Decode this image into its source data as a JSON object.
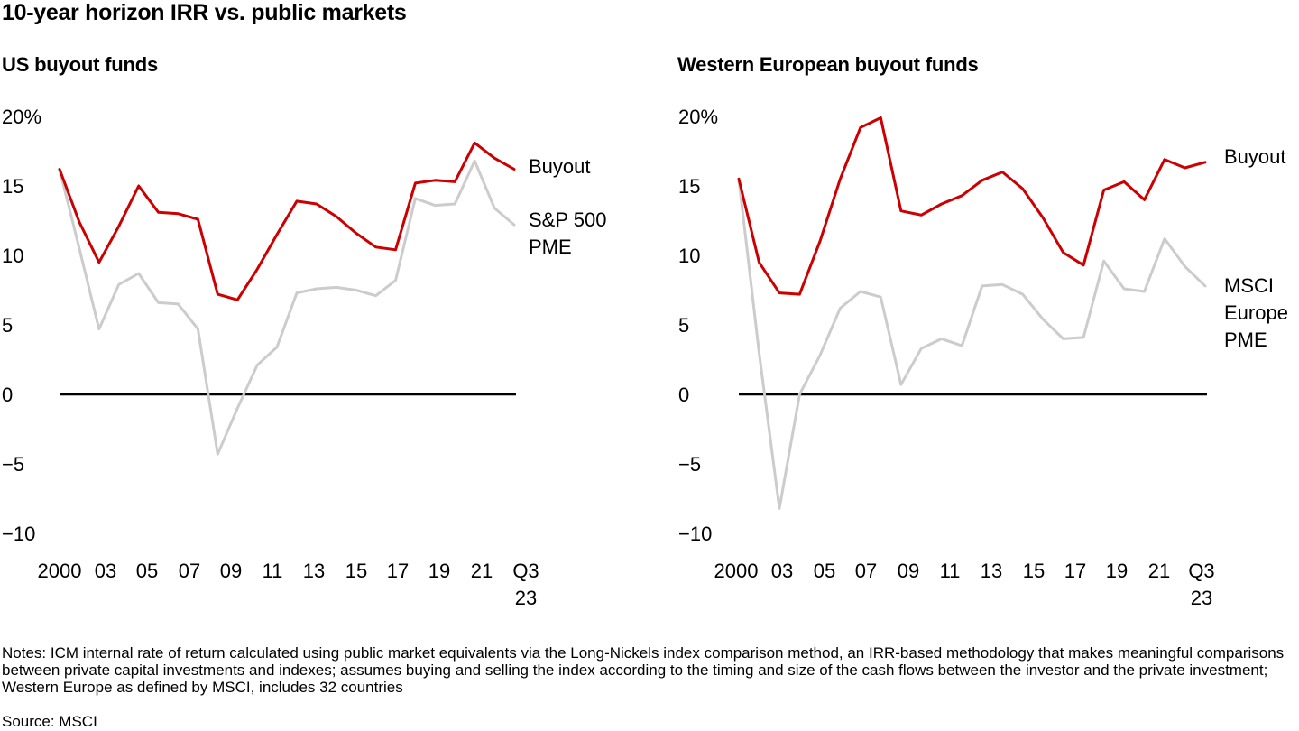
{
  "title": "10-year horizon IRR vs. public markets",
  "notes": "Notes: ICM internal rate of return calculated using public market equivalents via the Long-Nickels index comparison method, an IRR-based methodology that makes meaningful comparisons between private capital investments and indexes; assumes buying and selling the index according to the timing and size of the cash flows between the investor and the private investment; Western Europe as defined by MSCI, includes 32 countries",
  "source": "Source: MSCI",
  "colors": {
    "buyout": "#cc0000",
    "pme": "#cccccc",
    "zero_line": "#000000"
  },
  "chart_data": [
    {
      "type": "line",
      "title": "US buyout funds",
      "ylim": [
        -10,
        20
      ],
      "yticks": [
        "20%",
        "15",
        "10",
        "5",
        "0",
        "−5",
        "−10"
      ],
      "ytick_values": [
        20,
        15,
        10,
        5,
        0,
        -5,
        -10
      ],
      "xtick_labels": [
        "2000",
        "03",
        "05",
        "07",
        "09",
        "11",
        "13",
        "15",
        "17",
        "19",
        "21",
        "Q3"
      ],
      "xtick_sublabel": "23",
      "x": [
        2000,
        2001,
        2002,
        2003,
        2004,
        2005,
        2006,
        2007,
        2008,
        2009,
        2010,
        2011,
        2012,
        2013,
        2014,
        2015,
        2016,
        2017,
        2018,
        2019,
        2020,
        2021,
        2022,
        2023
      ],
      "series": [
        {
          "name": "Buyout",
          "label_lines": [
            "Buyout"
          ],
          "color": "buyout",
          "values": [
            16.2,
            12.4,
            9.5,
            12.1,
            15.0,
            13.1,
            13.0,
            12.6,
            7.2,
            6.8,
            9.0,
            11.5,
            13.9,
            13.7,
            12.8,
            11.6,
            10.6,
            10.4,
            15.2,
            15.4,
            15.3,
            18.1,
            17.0,
            16.2
          ]
        },
        {
          "name": "S&P 500 PME",
          "label_lines": [
            "S&P 500",
            "PME"
          ],
          "color": "pme",
          "values": [
            16.2,
            10.5,
            4.7,
            7.9,
            8.7,
            6.6,
            6.5,
            4.7,
            -4.3,
            -1.0,
            2.1,
            3.4,
            7.3,
            7.6,
            7.7,
            7.5,
            7.1,
            8.2,
            14.1,
            13.6,
            13.7,
            16.8,
            13.4,
            12.2
          ]
        }
      ]
    },
    {
      "type": "line",
      "title": "Western European buyout funds",
      "ylim": [
        -10,
        20
      ],
      "yticks": [
        "20%",
        "15",
        "10",
        "5",
        "0",
        "−5",
        "−10"
      ],
      "ytick_values": [
        20,
        15,
        10,
        5,
        0,
        -5,
        -10
      ],
      "xtick_labels": [
        "2000",
        "03",
        "05",
        "07",
        "09",
        "11",
        "13",
        "15",
        "17",
        "19",
        "21",
        "Q3"
      ],
      "xtick_sublabel": "23",
      "x": [
        2000,
        2001,
        2002,
        2003,
        2004,
        2005,
        2006,
        2007,
        2008,
        2009,
        2010,
        2011,
        2012,
        2013,
        2014,
        2015,
        2016,
        2017,
        2018,
        2019,
        2020,
        2021,
        2022,
        2023
      ],
      "series": [
        {
          "name": "Buyout",
          "label_lines": [
            "Buyout"
          ],
          "color": "buyout",
          "values": [
            15.5,
            9.5,
            7.3,
            7.2,
            11.0,
            15.5,
            19.2,
            19.9,
            13.2,
            12.9,
            13.7,
            14.3,
            15.4,
            16.0,
            14.8,
            12.7,
            10.2,
            9.3,
            14.7,
            15.3,
            14.0,
            16.9,
            16.3,
            16.7
          ]
        },
        {
          "name": "MSCI Europe PME",
          "label_lines": [
            "MSCI",
            "Europe",
            "PME"
          ],
          "color": "pme",
          "values": [
            15.5,
            3.0,
            -8.2,
            0.0,
            2.8,
            6.2,
            7.4,
            7.0,
            0.7,
            3.3,
            4.0,
            3.5,
            7.8,
            7.9,
            7.2,
            5.4,
            4.0,
            4.1,
            9.6,
            7.6,
            7.4,
            11.2,
            9.2,
            7.8
          ]
        }
      ]
    }
  ]
}
